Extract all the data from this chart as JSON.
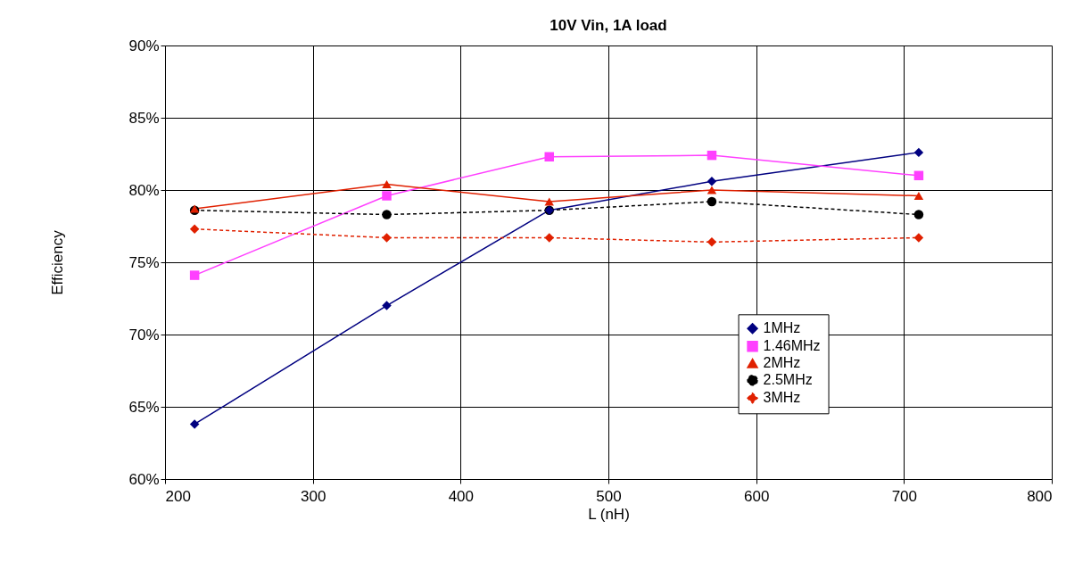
{
  "chart_data": {
    "type": "line",
    "title": "10V Vin, 1A load",
    "xlabel": "L (nH)",
    "ylabel": "Efficiency",
    "x": [
      220,
      350,
      460,
      570,
      710
    ],
    "series": [
      {
        "name": "1MHz",
        "color": "#000080",
        "values": [
          63.8,
          72.0,
          78.6,
          80.6,
          82.6
        ],
        "marker": "diamond",
        "line_style": "solid"
      },
      {
        "name": "1.46MHz",
        "color": "#ff40ff",
        "values": [
          74.1,
          79.6,
          82.3,
          82.4,
          81.0
        ],
        "marker": "square",
        "line_style": "solid"
      },
      {
        "name": "2MHz",
        "color": "#e02000",
        "values": [
          78.7,
          80.4,
          79.2,
          80.0,
          79.6
        ],
        "marker": "triangle",
        "line_style": "solid"
      },
      {
        "name": "2.5MHz",
        "color": "#000000",
        "values": [
          78.6,
          78.3,
          78.6,
          79.2,
          78.3
        ],
        "marker": "circle",
        "line_style": "dashed"
      },
      {
        "name": "3MHz",
        "color": "#e02000",
        "values": [
          77.3,
          76.7,
          76.7,
          76.4,
          76.7
        ],
        "marker": "diamond",
        "line_style": "dashed"
      }
    ],
    "xlim": [
      200,
      800
    ],
    "xticks": [
      200,
      300,
      400,
      500,
      600,
      700,
      800
    ],
    "ylim": [
      60,
      90
    ],
    "yticks": [
      {
        "value": 60,
        "label": "60%"
      },
      {
        "value": 65,
        "label": "65%"
      },
      {
        "value": 70,
        "label": "70%"
      },
      {
        "value": 75,
        "label": "75%"
      },
      {
        "value": 80,
        "label": "80%"
      },
      {
        "value": 85,
        "label": "85%"
      },
      {
        "value": 90,
        "label": "90%"
      }
    ],
    "grid": true,
    "legend": "bottom right"
  }
}
